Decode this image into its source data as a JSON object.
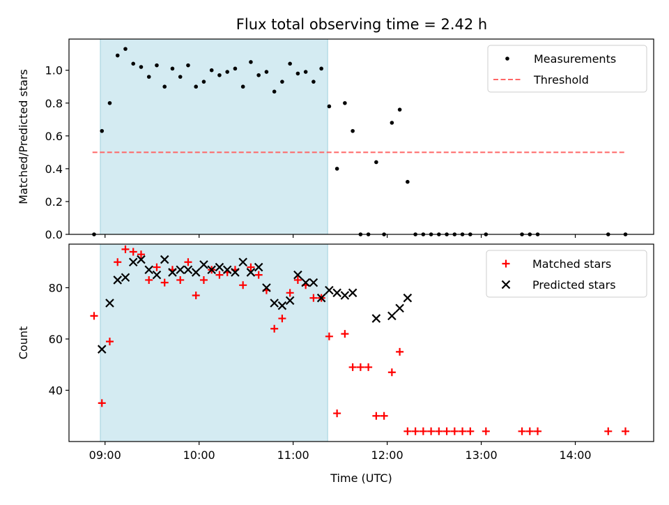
{
  "figure": {
    "title": "Flux total observing time = 2.42 h"
  },
  "chart_data": [
    {
      "type": "scatter",
      "panel": "top",
      "ylabel": "Matched/Predicted stars",
      "xlim": [
        "08:37",
        "14:50"
      ],
      "ylim": [
        0,
        1.19
      ],
      "yticks": [
        0.0,
        0.2,
        0.4,
        0.6,
        0.8,
        1.0
      ],
      "ytick_labels": [
        "0.0",
        "0.2",
        "0.4",
        "0.6",
        "0.8",
        "1.0"
      ],
      "xticks": [
        "09:00",
        "10:00",
        "11:00",
        "12:00",
        "13:00",
        "14:00"
      ],
      "shaded_interval": [
        "08:57",
        "11:22"
      ],
      "shade_color": "#add8e6",
      "legend": {
        "placement": "top-right",
        "entries": [
          "Measurements",
          "Threshold"
        ]
      },
      "threshold": {
        "name": "Threshold",
        "y": 0.5,
        "x_range": [
          "08:52",
          "14:32"
        ],
        "color": "#ff6666",
        "style": "dashed"
      },
      "series": [
        {
          "name": "Measurements",
          "marker": "dot",
          "color": "#000000",
          "x": [
            "08:53",
            "08:58",
            "09:03",
            "09:08",
            "09:13",
            "09:18",
            "09:23",
            "09:28",
            "09:33",
            "09:38",
            "09:43",
            "09:48",
            "09:53",
            "09:58",
            "10:03",
            "10:08",
            "10:13",
            "10:18",
            "10:23",
            "10:28",
            "10:33",
            "10:38",
            "10:43",
            "10:48",
            "10:53",
            "10:58",
            "11:03",
            "11:08",
            "11:13",
            "11:18",
            "11:23",
            "11:28",
            "11:33",
            "11:38",
            "11:43",
            "11:48",
            "11:53",
            "11:58",
            "12:03",
            "12:08",
            "12:13",
            "12:18",
            "12:23",
            "12:28",
            "12:33",
            "12:38",
            "12:43",
            "12:48",
            "12:53",
            "13:03",
            "13:26",
            "13:31",
            "13:36",
            "14:21",
            "14:32"
          ],
          "y": [
            0.0,
            0.63,
            0.8,
            1.09,
            1.13,
            1.04,
            1.02,
            0.96,
            1.03,
            0.9,
            1.01,
            0.96,
            1.03,
            0.9,
            0.93,
            1.0,
            0.97,
            0.99,
            1.01,
            0.9,
            1.05,
            0.97,
            0.99,
            0.87,
            0.93,
            1.04,
            0.98,
            0.99,
            0.93,
            1.01,
            0.78,
            0.4,
            0.8,
            0.63,
            0.0,
            0.0,
            0.44,
            0.0,
            0.68,
            0.76,
            0.32,
            0.0,
            0.0,
            0.0,
            0.0,
            0.0,
            0.0,
            0.0,
            0.0,
            0.0,
            0.0,
            0.0,
            0.0,
            0.0,
            0.0
          ]
        }
      ]
    },
    {
      "type": "scatter",
      "panel": "bottom",
      "xlabel": "Time (UTC)",
      "ylabel": "Count",
      "xlim": [
        "08:37",
        "14:50"
      ],
      "ylim": [
        20,
        97
      ],
      "yticks": [
        40,
        60,
        80
      ],
      "ytick_labels": [
        "40",
        "60",
        "80"
      ],
      "xticks": [
        "09:00",
        "10:00",
        "11:00",
        "12:00",
        "13:00",
        "14:00"
      ],
      "xtick_labels": [
        "09:00",
        "10:00",
        "11:00",
        "12:00",
        "13:00",
        "14:00"
      ],
      "shaded_interval": [
        "08:57",
        "11:22"
      ],
      "shade_color": "#add8e6",
      "legend": {
        "placement": "top-right",
        "entries": [
          "Matched stars",
          "Predicted stars"
        ]
      },
      "series": [
        {
          "name": "Matched stars",
          "marker": "plus",
          "color": "#ff0000",
          "x": [
            "08:53",
            "08:58",
            "09:03",
            "09:08",
            "09:13",
            "09:18",
            "09:23",
            "09:28",
            "09:33",
            "09:38",
            "09:43",
            "09:48",
            "09:53",
            "09:58",
            "10:03",
            "10:08",
            "10:13",
            "10:18",
            "10:23",
            "10:28",
            "10:33",
            "10:38",
            "10:43",
            "10:48",
            "10:53",
            "10:58",
            "11:03",
            "11:08",
            "11:13",
            "11:18",
            "11:23",
            "11:28",
            "11:33",
            "11:38",
            "11:43",
            "11:48",
            "11:53",
            "11:58",
            "12:03",
            "12:08",
            "12:13",
            "12:18",
            "12:23",
            "12:28",
            "12:33",
            "12:38",
            "12:43",
            "12:48",
            "12:53",
            "13:03",
            "13:26",
            "13:31",
            "13:36",
            "14:21",
            "14:32"
          ],
          "y": [
            69,
            35,
            59,
            90,
            95,
            94,
            93,
            83,
            88,
            82,
            87,
            83,
            90,
            77,
            83,
            87,
            85,
            86,
            87,
            81,
            88,
            85,
            79,
            64,
            68,
            78,
            83,
            81,
            76,
            76,
            61,
            31,
            62,
            49,
            49,
            49,
            30,
            30,
            47,
            55,
            24,
            24,
            24,
            24,
            24,
            24,
            24,
            24,
            24,
            24,
            24,
            24,
            24,
            24,
            24
          ]
        },
        {
          "name": "Predicted stars",
          "marker": "x",
          "color": "#000000",
          "x": [
            "08:58",
            "09:03",
            "09:08",
            "09:13",
            "09:18",
            "09:23",
            "09:28",
            "09:33",
            "09:38",
            "09:43",
            "09:48",
            "09:53",
            "09:58",
            "10:03",
            "10:08",
            "10:13",
            "10:18",
            "10:23",
            "10:28",
            "10:33",
            "10:38",
            "10:43",
            "10:48",
            "10:53",
            "10:58",
            "11:03",
            "11:08",
            "11:13",
            "11:18",
            "11:23",
            "11:28",
            "11:33",
            "11:38",
            "11:53",
            "12:03",
            "12:08",
            "12:13"
          ],
          "y": [
            56,
            74,
            83,
            84,
            90,
            91,
            87,
            85,
            91,
            86,
            87,
            87,
            86,
            89,
            87,
            88,
            87,
            86,
            90,
            86,
            88,
            80,
            74,
            73,
            75,
            85,
            82,
            82,
            76,
            79,
            78,
            77,
            78,
            68,
            69,
            72,
            76
          ]
        }
      ]
    }
  ]
}
